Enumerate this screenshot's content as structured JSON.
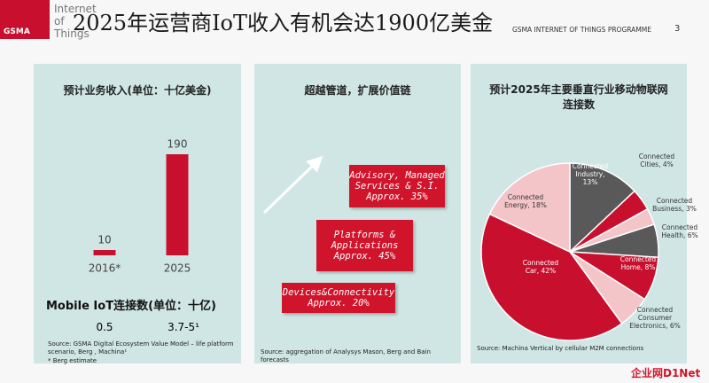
{
  "header": {
    "logo": "GSMA",
    "brand": "Internet of Things",
    "title": "2025年运营商IoT收入有机会达1900亿美金",
    "programme": "GSMA INTERNET OF THINGS PROGRAMME",
    "page": "3"
  },
  "chart_data": [
    {
      "type": "bar",
      "title": "预计业务收入(单位：十亿美金)",
      "categories": [
        "2016*",
        "2025"
      ],
      "values": [
        10,
        190
      ],
      "color": "#c8102e",
      "ylim": [
        0,
        200
      ]
    },
    {
      "type": "pie",
      "title": "预计2025年主要垂直行业移动物联网连接数",
      "values": [
        13,
        4,
        3,
        6,
        8,
        6,
        42,
        18
      ],
      "value_labels": [
        "Connected Industry, 13%",
        "Connected Cities, 4%",
        "Connected Business, 3%",
        "Connected Health, 6%",
        "Connected Home, 8%",
        "Connected Consumer Electronics, 6%",
        "Connected Car, 42%",
        "Connected Energy, 18%"
      ],
      "colors": [
        "#595959",
        "#c8102e",
        "#f4c5c8",
        "#595959",
        "#c8102e",
        "#f4c5c8",
        "#c8102e",
        "#f4c5c8"
      ]
    }
  ],
  "mobile_iot": {
    "title": "Mobile IoT连接数(单位：十亿)",
    "values": [
      0.5,
      "3.7-5¹"
    ]
  },
  "left_source": {
    "text": "Source: GSMA Digital Ecosystem Value Model – life platform scenario, Berg , Machina¹",
    "footnote": "* Berg estimate"
  },
  "value_chain": {
    "title": "超越管道，扩展价值链",
    "layers": [
      {
        "label": "Advisory, Managed Services & S.I.",
        "share": "Approx. 35%"
      },
      {
        "label": "Platforms & Applications",
        "share": "Approx. 45%"
      },
      {
        "label": "Devices&Connectivity",
        "share": "Approx. 20%"
      }
    ],
    "source": "Source: aggregation of Analysys Mason, Berg and Bain forecasts"
  },
  "pie_source": "Source: Machina Vertical by cellular M2M connections",
  "watermark": "企业网D1Net"
}
